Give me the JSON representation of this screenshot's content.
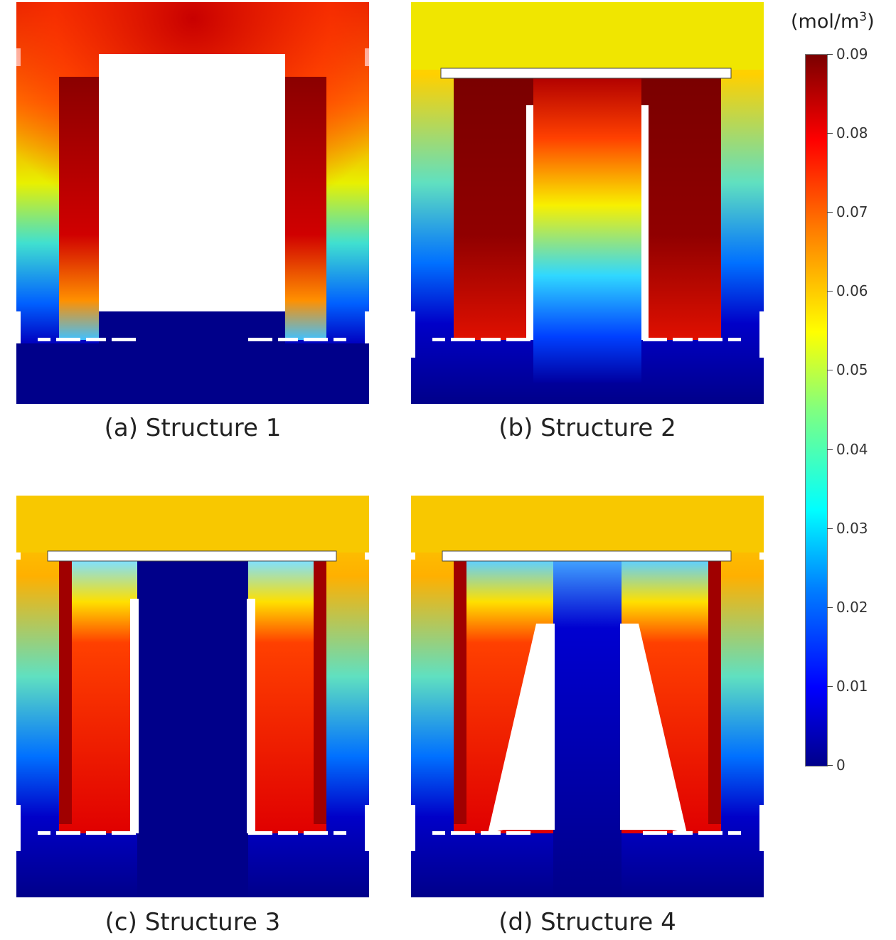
{
  "panels": [
    {
      "caption": "(a) Structure 1"
    },
    {
      "caption": "(b) Structure 2"
    },
    {
      "caption": "(c) Structure 3"
    },
    {
      "caption": "(d) Structure 4"
    }
  ],
  "colorbar": {
    "unit_prefix": "(mol/m",
    "unit_power": "3",
    "unit_suffix": ")",
    "min": 0,
    "max": 0.09,
    "ticks": [
      "0",
      "0.01",
      "0.02",
      "0.03",
      "0.04",
      "0.05",
      "0.06",
      "0.07",
      "0.08",
      "0.09"
    ],
    "colors": [
      "#00008a",
      "#0000ff",
      "#0080ff",
      "#00ffff",
      "#80ff80",
      "#ffff00",
      "#ff8000",
      "#ff0000",
      "#7a0000"
    ]
  }
}
